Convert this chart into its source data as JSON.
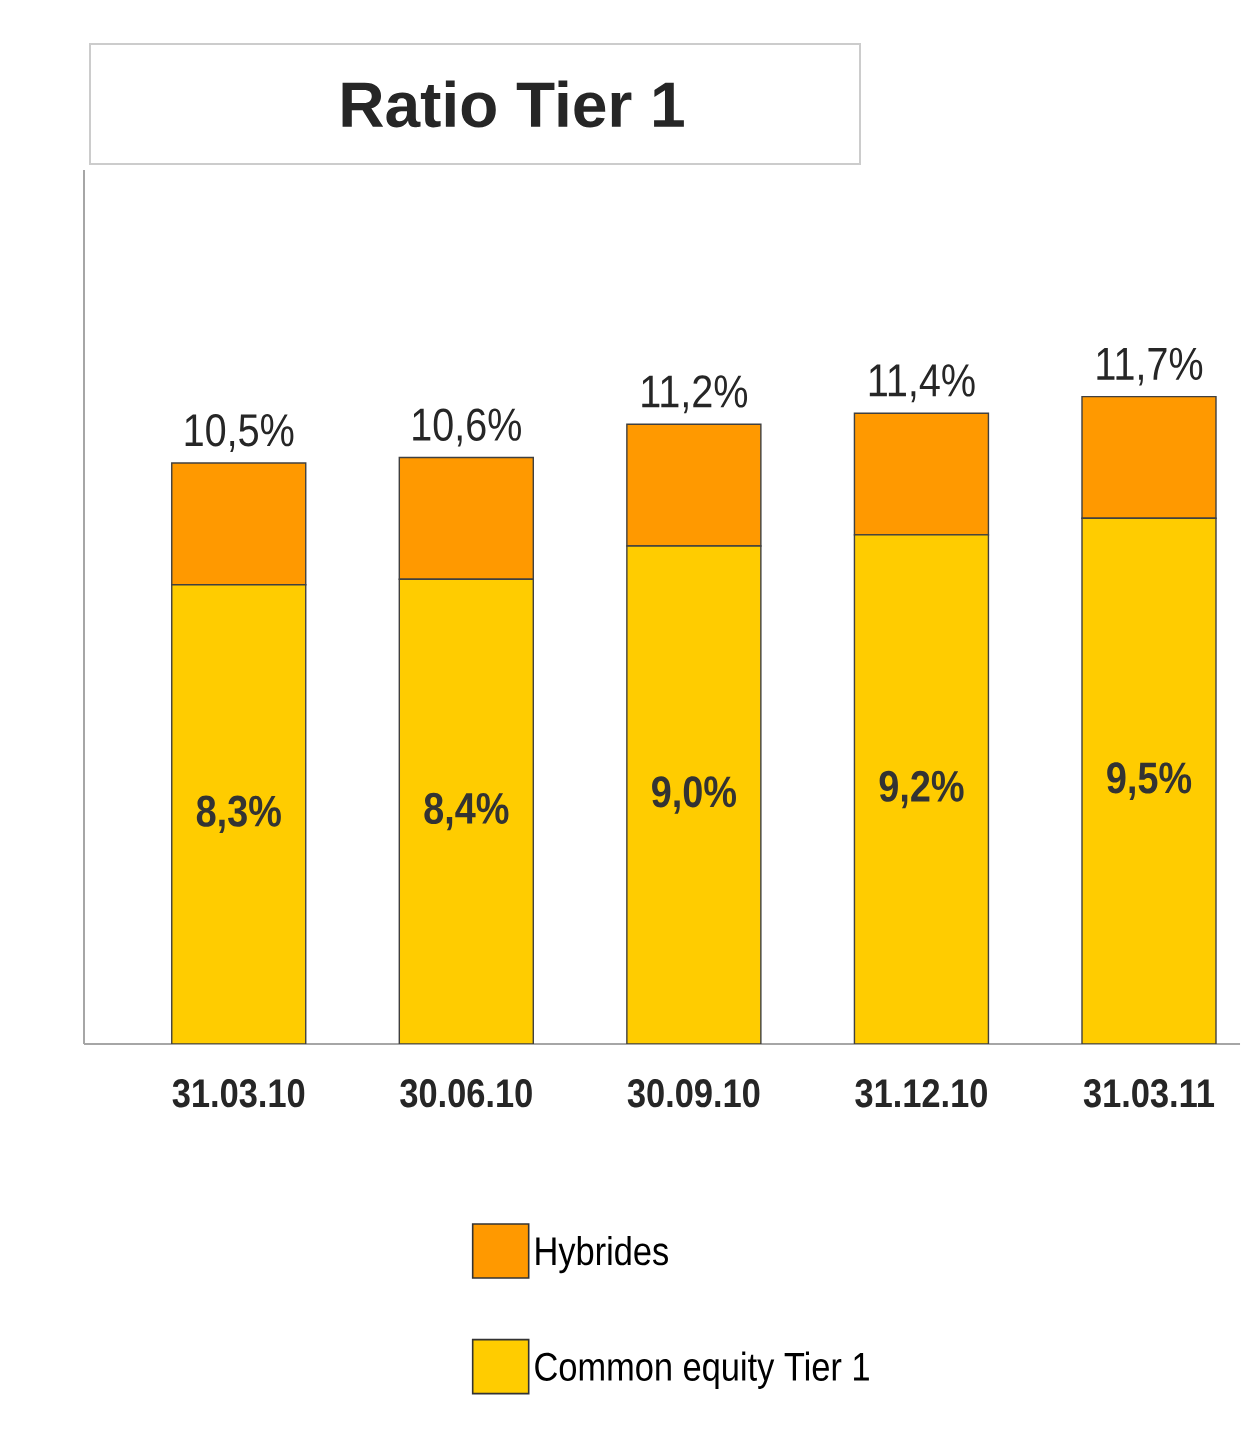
{
  "chart_data": {
    "type": "bar",
    "title": "Ratio Tier 1",
    "stacked": true,
    "legend": "bottom",
    "categories": [
      "31.03.10",
      "30.06.10",
      "30.09.10",
      "31.12.10",
      "31.03.11"
    ],
    "series": [
      {
        "name": "Common equity Tier 1",
        "color": "#ffcc00",
        "values": [
          8.3,
          8.4,
          9.0,
          9.2,
          9.5
        ],
        "value_labels": [
          "8,3%",
          "8,4%",
          "9,0%",
          "9,2%",
          "9,5%"
        ]
      },
      {
        "name": "Hybrides",
        "color": "#ff9900",
        "values": [
          2.2,
          2.2,
          2.2,
          2.2,
          2.2
        ]
      }
    ],
    "totals": [
      "10,5%",
      "10,6%",
      "11,2%",
      "11,4%",
      "11,7%"
    ]
  }
}
